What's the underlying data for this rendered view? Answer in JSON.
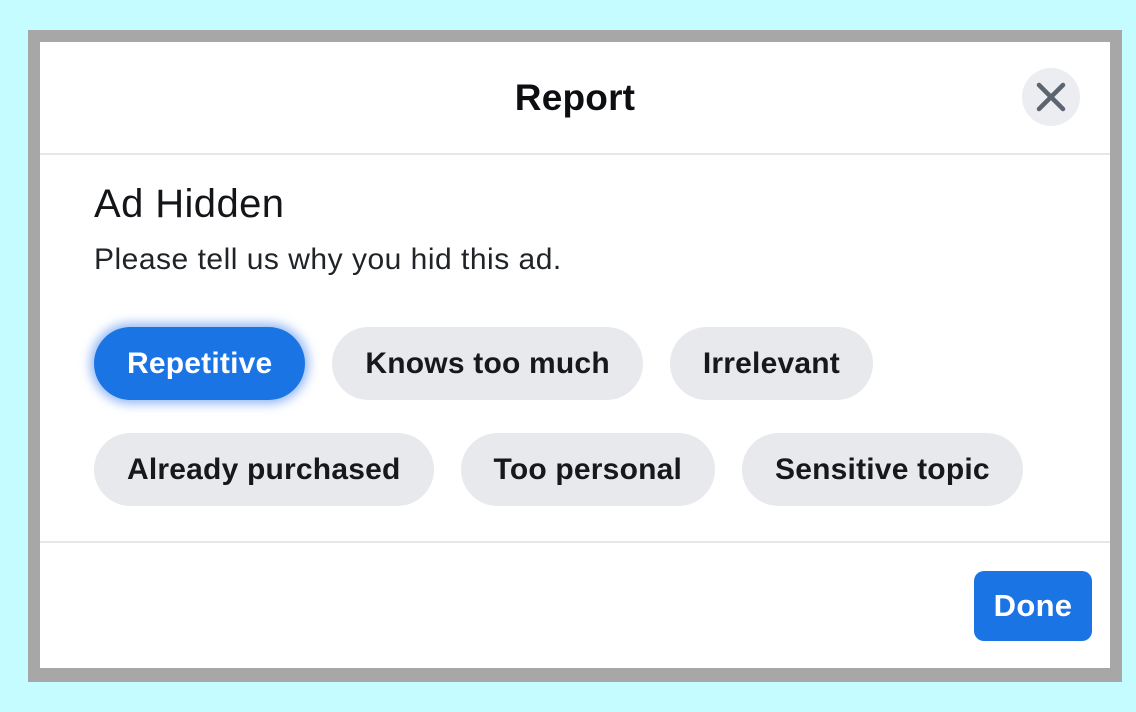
{
  "modal": {
    "title": "Report",
    "close_icon": "close-icon",
    "section": {
      "heading": "Ad Hidden",
      "subtitle": "Please tell us why you hid this ad."
    },
    "options": [
      {
        "label": "Repetitive",
        "selected": true,
        "row": 0
      },
      {
        "label": "Knows too much",
        "selected": false,
        "row": 0
      },
      {
        "label": "Irrelevant",
        "selected": false,
        "row": 0
      },
      {
        "label": "Already purchased",
        "selected": false,
        "row": 1
      },
      {
        "label": "Too personal",
        "selected": false,
        "row": 1
      },
      {
        "label": "Sensitive topic",
        "selected": false,
        "row": 1
      }
    ],
    "footer": {
      "done_label": "Done"
    },
    "colors": {
      "accent_blue": "#1b74e4",
      "page_background": "#c5fcff",
      "frame_border": "#a7a7a7",
      "modal_background": "#ffffff",
      "pill_background": "#e7e9ec",
      "divider": "#e7e7e8",
      "close_circle": "#ebedf0",
      "close_glyph": "#5c6470",
      "selected_glow": "rgba(47,119,238,0.5)"
    }
  }
}
